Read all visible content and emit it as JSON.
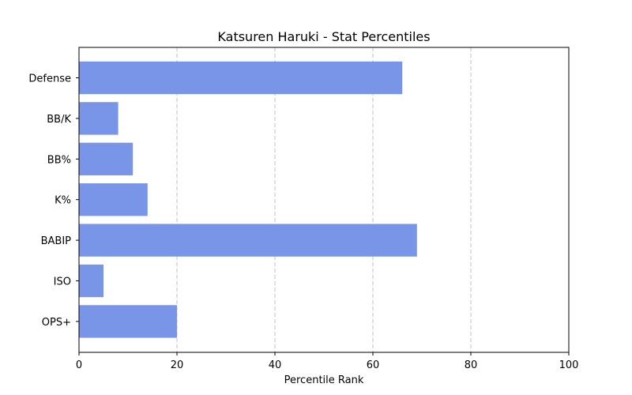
{
  "chart_data": {
    "type": "bar",
    "orientation": "horizontal",
    "title": "Katsuren Haruki - Stat Percentiles",
    "xlabel": "Percentile Rank",
    "ylabel": "",
    "xlim": [
      0,
      100
    ],
    "xticks": [
      0,
      20,
      40,
      60,
      80,
      100
    ],
    "grid": "x-axis dashed",
    "bar_color": "#7895e8",
    "categories": [
      "Defense",
      "BB/K",
      "BB%",
      "K%",
      "BABIP",
      "ISO",
      "OPS+"
    ],
    "values": [
      66,
      8,
      11,
      14,
      69,
      5,
      20
    ]
  }
}
